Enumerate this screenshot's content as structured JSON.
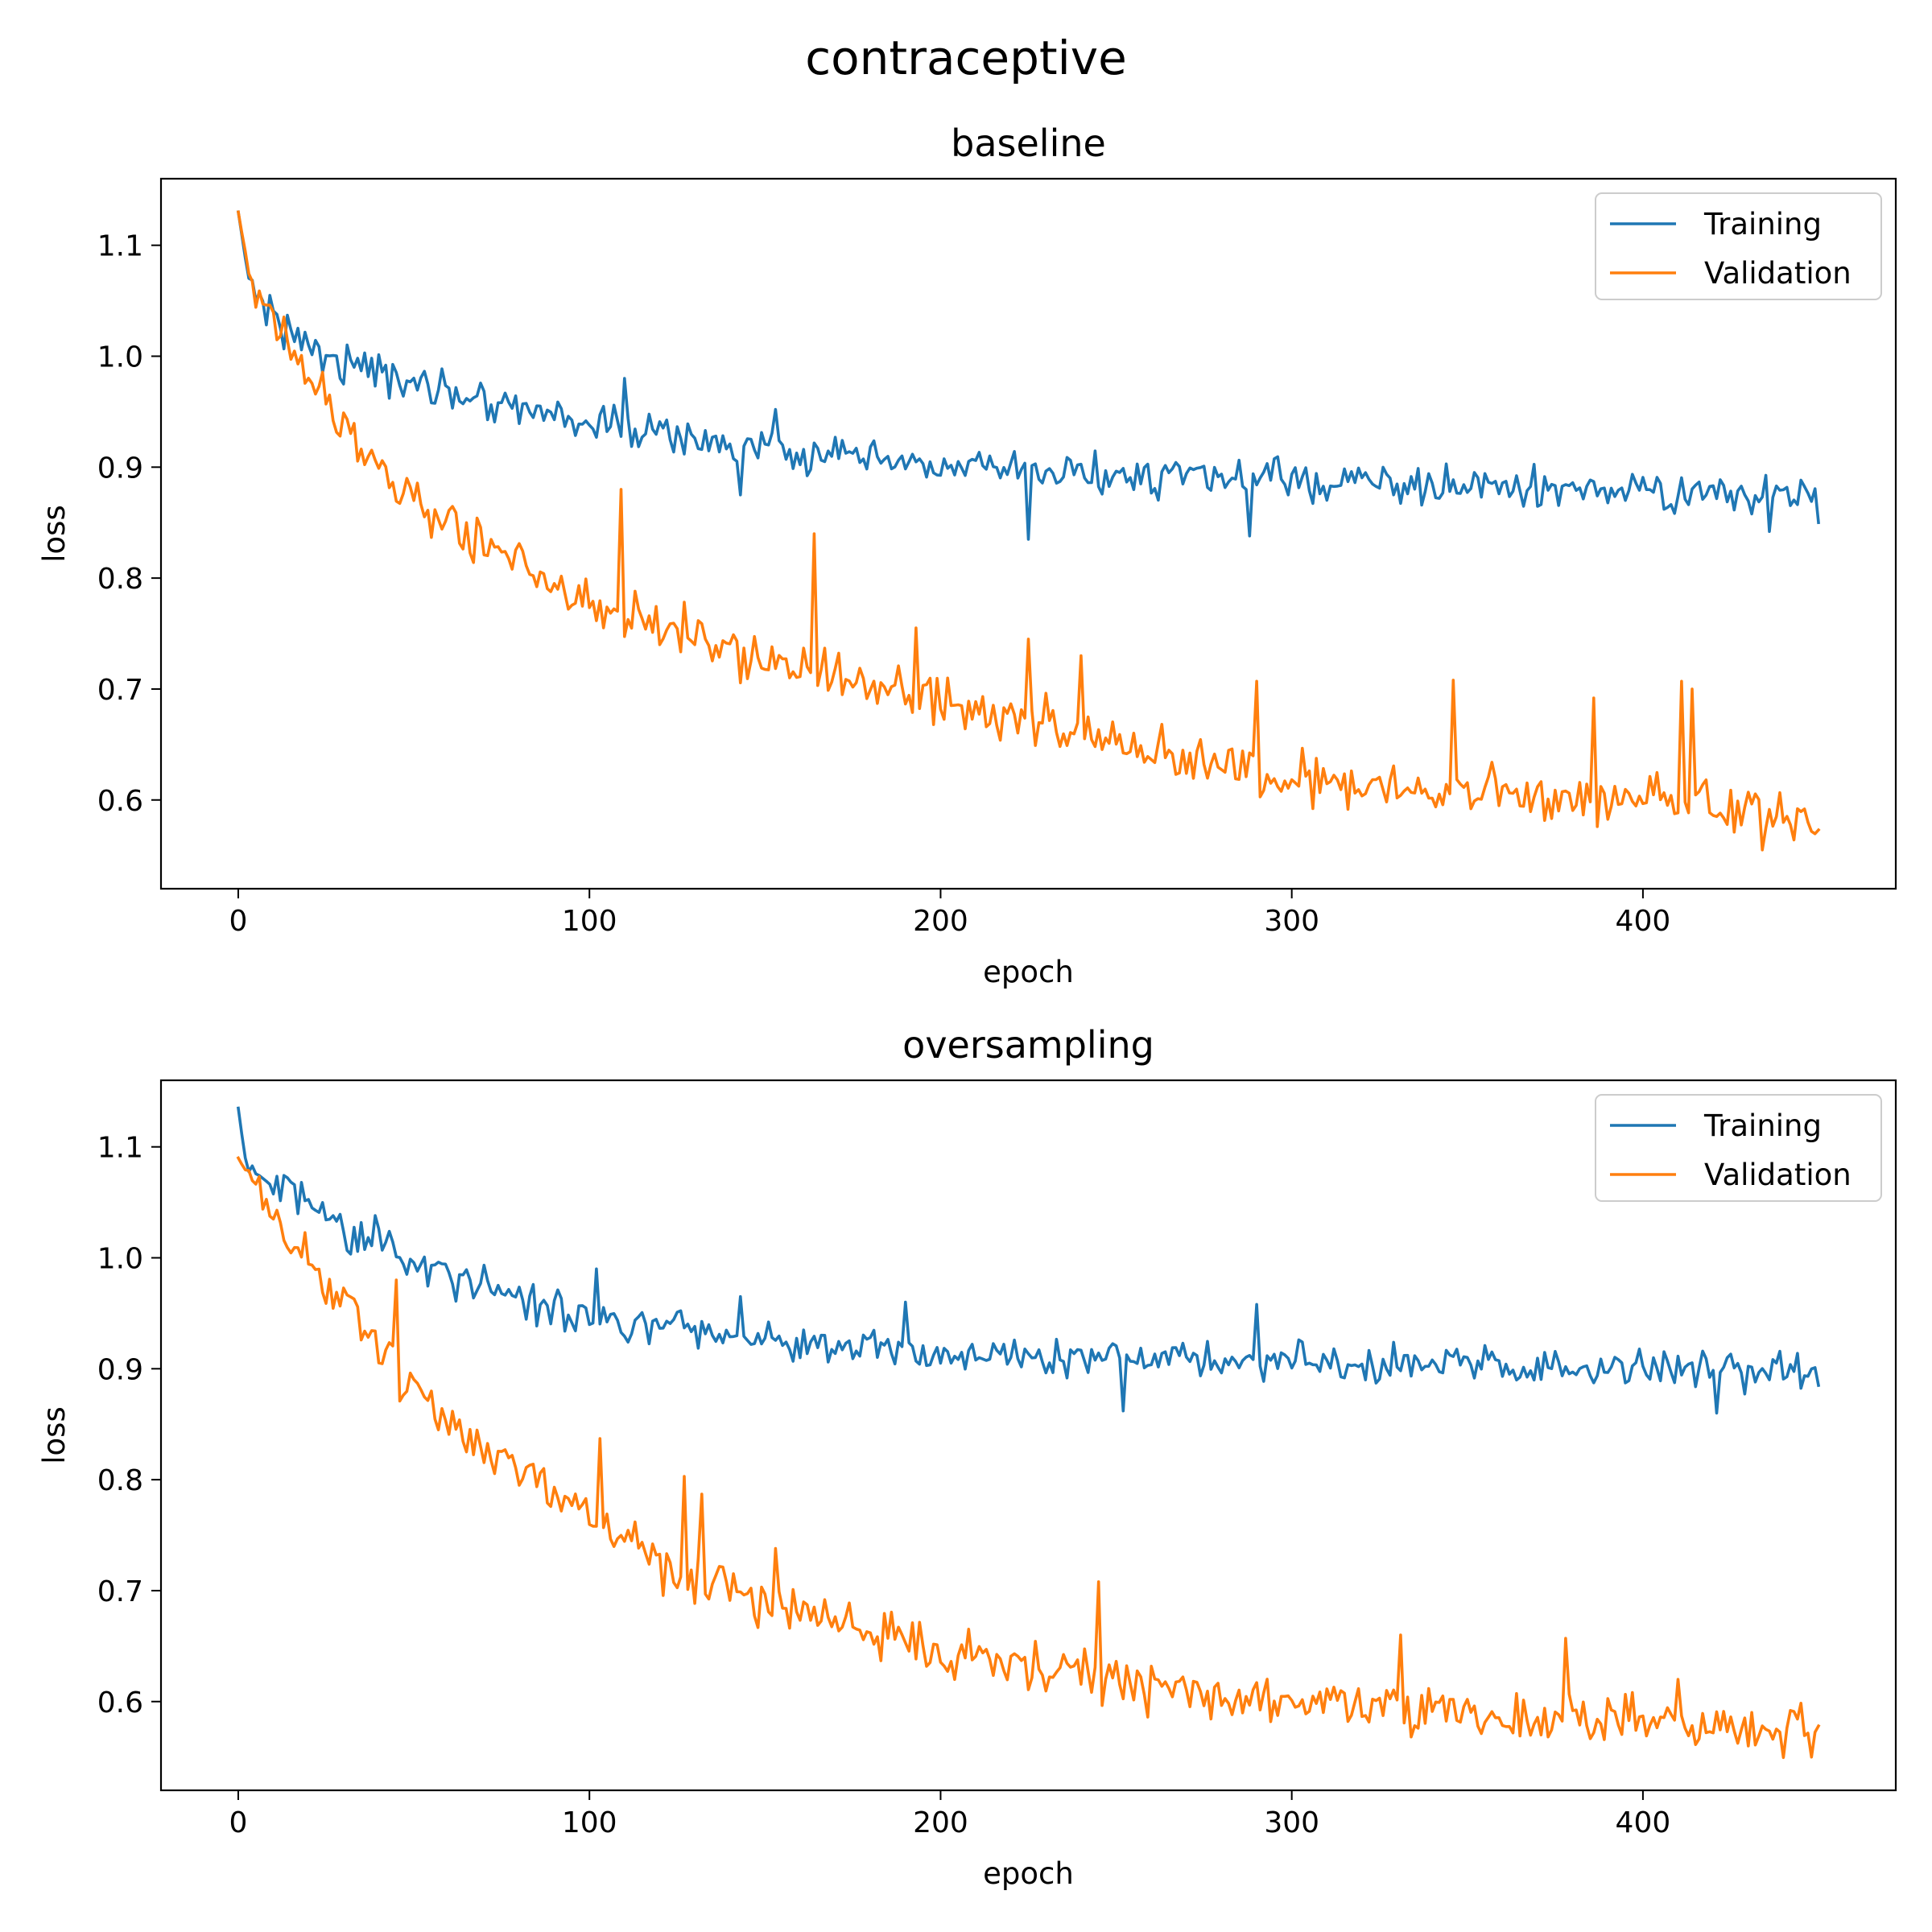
{
  "figure": {
    "suptitle": "contraceptive"
  },
  "chart_data": [
    {
      "type": "line",
      "title": "baseline",
      "xlabel": "epoch",
      "ylabel": "loss",
      "xlim": [
        -22,
        472
      ],
      "ylim": [
        0.52,
        1.16
      ],
      "xticks": [
        0,
        100,
        200,
        300,
        400
      ],
      "yticks": [
        0.6,
        0.7,
        0.8,
        0.9,
        1.0,
        1.1
      ],
      "grid": false,
      "legend": "top-right",
      "series": [
        {
          "name": "Training",
          "color": "#1f77b4",
          "x_start": 0,
          "x_end": 450,
          "anchors": [
            [
              0,
              1.13
            ],
            [
              3,
              1.07
            ],
            [
              10,
              1.035
            ],
            [
              20,
              1.01
            ],
            [
              30,
              0.995
            ],
            [
              40,
              0.985
            ],
            [
              50,
              0.975
            ],
            [
              60,
              0.97
            ],
            [
              70,
              0.962
            ],
            [
              80,
              0.955
            ],
            [
              90,
              0.948
            ],
            [
              100,
              0.94
            ],
            [
              120,
              0.93
            ],
            [
              140,
              0.92
            ],
            [
              160,
              0.912
            ],
            [
              180,
              0.905
            ],
            [
              200,
              0.9
            ],
            [
              250,
              0.893
            ],
            [
              300,
              0.888
            ],
            [
              350,
              0.882
            ],
            [
              400,
              0.878
            ],
            [
              450,
              0.872
            ]
          ],
          "noise": 0.016,
          "events": [
            [
              110,
              0.98
            ],
            [
              143,
              0.875
            ],
            [
              153,
              0.952
            ],
            [
              225,
              0.835
            ],
            [
              288,
              0.838
            ],
            [
              436,
              0.842
            ],
            [
              450,
              0.85
            ]
          ]
        },
        {
          "name": "Validation",
          "color": "#ff7f0e",
          "x_start": 0,
          "x_end": 450,
          "anchors": [
            [
              0,
              1.13
            ],
            [
              3,
              1.075
            ],
            [
              10,
              1.03
            ],
            [
              20,
              0.985
            ],
            [
              30,
              0.935
            ],
            [
              40,
              0.9
            ],
            [
              50,
              0.87
            ],
            [
              60,
              0.85
            ],
            [
              70,
              0.83
            ],
            [
              80,
              0.815
            ],
            [
              90,
              0.8
            ],
            [
              100,
              0.78
            ],
            [
              120,
              0.76
            ],
            [
              140,
              0.735
            ],
            [
              160,
              0.715
            ],
            [
              180,
              0.705
            ],
            [
              200,
              0.69
            ],
            [
              220,
              0.675
            ],
            [
              240,
              0.66
            ],
            [
              260,
              0.645
            ],
            [
              280,
              0.63
            ],
            [
              300,
              0.62
            ],
            [
              320,
              0.615
            ],
            [
              340,
              0.61
            ],
            [
              360,
              0.605
            ],
            [
              380,
              0.6
            ],
            [
              400,
              0.6
            ],
            [
              420,
              0.595
            ],
            [
              440,
              0.59
            ],
            [
              450,
              0.575
            ]
          ],
          "noise": 0.022,
          "events": [
            [
              109,
              0.88
            ],
            [
              164,
              0.84
            ],
            [
              193,
              0.755
            ],
            [
              225,
              0.745
            ],
            [
              240,
              0.73
            ],
            [
              290,
              0.707
            ],
            [
              346,
              0.708
            ],
            [
              386,
              0.692
            ],
            [
              411,
              0.707
            ],
            [
              414,
              0.7
            ],
            [
              434,
              0.555
            ],
            [
              450,
              0.573
            ]
          ]
        }
      ]
    },
    {
      "type": "line",
      "title": "oversampling",
      "xlabel": "epoch",
      "ylabel": "loss",
      "xlim": [
        -22,
        472
      ],
      "ylim": [
        0.52,
        1.16
      ],
      "xticks": [
        0,
        100,
        200,
        300,
        400
      ],
      "yticks": [
        0.6,
        0.7,
        0.8,
        0.9,
        1.0,
        1.1
      ],
      "grid": false,
      "legend": "top-right",
      "series": [
        {
          "name": "Training",
          "color": "#1f77b4",
          "x_start": 0,
          "x_end": 450,
          "anchors": [
            [
              0,
              1.135
            ],
            [
              2,
              1.09
            ],
            [
              5,
              1.075
            ],
            [
              10,
              1.065
            ],
            [
              20,
              1.045
            ],
            [
              30,
              1.025
            ],
            [
              40,
              1.01
            ],
            [
              50,
              0.995
            ],
            [
              60,
              0.985
            ],
            [
              70,
              0.975
            ],
            [
              80,
              0.965
            ],
            [
              90,
              0.955
            ],
            [
              100,
              0.948
            ],
            [
              120,
              0.94
            ],
            [
              140,
              0.932
            ],
            [
              160,
              0.925
            ],
            [
              180,
              0.92
            ],
            [
              200,
              0.915
            ],
            [
              250,
              0.91
            ],
            [
              300,
              0.905
            ],
            [
              350,
              0.902
            ],
            [
              400,
              0.9
            ],
            [
              450,
              0.898
            ]
          ],
          "noise": 0.016,
          "events": [
            [
              18,
              1.068
            ],
            [
              39,
              1.038
            ],
            [
              102,
              0.99
            ],
            [
              143,
              0.965
            ],
            [
              190,
              0.96
            ],
            [
              252,
              0.862
            ],
            [
              290,
              0.958
            ],
            [
              421,
              0.86
            ],
            [
              450,
              0.885
            ]
          ]
        },
        {
          "name": "Validation",
          "color": "#ff7f0e",
          "x_start": 0,
          "x_end": 450,
          "anchors": [
            [
              0,
              1.09
            ],
            [
              5,
              1.06
            ],
            [
              10,
              1.035
            ],
            [
              20,
              1.0
            ],
            [
              30,
              0.96
            ],
            [
              40,
              0.92
            ],
            [
              50,
              0.885
            ],
            [
              60,
              0.855
            ],
            [
              70,
              0.83
            ],
            [
              80,
              0.81
            ],
            [
              90,
              0.79
            ],
            [
              100,
              0.77
            ],
            [
              110,
              0.745
            ],
            [
              120,
              0.725
            ],
            [
              140,
              0.7
            ],
            [
              160,
              0.68
            ],
            [
              180,
              0.665
            ],
            [
              200,
              0.645
            ],
            [
              220,
              0.635
            ],
            [
              240,
              0.625
            ],
            [
              260,
              0.615
            ],
            [
              280,
              0.608
            ],
            [
              300,
              0.6
            ],
            [
              320,
              0.595
            ],
            [
              340,
              0.59
            ],
            [
              360,
              0.585
            ],
            [
              380,
              0.585
            ],
            [
              400,
              0.582
            ],
            [
              420,
              0.578
            ],
            [
              440,
              0.575
            ],
            [
              450,
              0.575
            ]
          ],
          "noise": 0.02,
          "events": [
            [
              45,
              0.98
            ],
            [
              103,
              0.837
            ],
            [
              127,
              0.803
            ],
            [
              132,
              0.787
            ],
            [
              153,
              0.738
            ],
            [
              245,
              0.708
            ],
            [
              331,
              0.66
            ],
            [
              378,
              0.657
            ],
            [
              410,
              0.62
            ],
            [
              448,
              0.55
            ],
            [
              450,
              0.578
            ]
          ]
        }
      ]
    }
  ]
}
